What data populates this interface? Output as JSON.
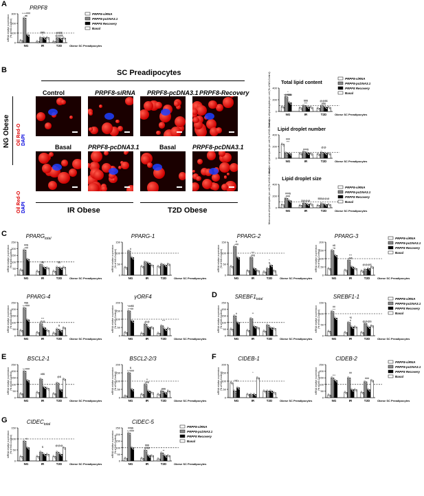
{
  "panel_letters": [
    "A",
    "B",
    "C",
    "D",
    "E",
    "F",
    "G"
  ],
  "legend_items": [
    "PRPF8-siRNA",
    "PRPF8-pcDNA3.1",
    "PRPF8 Recovery",
    "Basal"
  ],
  "ylabel_prefix": "mRNA relative expression",
  "ylabel_unit": "(% of NG-Control)",
  "obese_label": "Obese SC Preadipocytes",
  "groups": [
    "NG",
    "IR",
    "T2D"
  ],
  "micrograph": {
    "header": "SC Preadipocytes",
    "side_ng": "NG Obese",
    "stain1": "Oil Red-O",
    "stain2": "DAPI",
    "row1": [
      "Control",
      "PRPF8-siRNA",
      "PRPF8-pcDNA3.1",
      "PRPF8-Recovery"
    ],
    "row2": [
      "Basal",
      "PRPF8-pcDNA3.1",
      "Basal",
      "PRPF8-pcDNA3.1"
    ],
    "ir_label": "IR Obese",
    "t2d_label": "T2D Obese"
  },
  "lipid_titles": [
    "Total lipid content",
    "Lipid droplet number",
    "Lipid droplet size"
  ],
  "lipid_ylabels": [
    "Total area of lipid droplets per cell (% of NG-Control)",
    "Number of lipid droplets per cell (% of NG-Control)",
    "Mean area of lipid droplets per cell (% of NG-Control)"
  ],
  "chart_data": [
    {
      "id": "A",
      "type": "bar",
      "title": "PRPF8",
      "ylim": [
        0,
        300
      ],
      "yticks": [
        0,
        100,
        200,
        300
      ],
      "categories": [
        "NG",
        "IR",
        "T2D"
      ],
      "series": [
        {
          "name": "PRPF8-siRNA",
          "values": [
            22,
            12,
            11
          ]
        },
        {
          "name": "PRPF8-pcDNA3.1",
          "values": [
            255,
            52,
            50
          ]
        },
        {
          "name": "PRPF8 Recovery",
          "values": [
            80,
            50,
            45
          ]
        },
        {
          "name": "Basal",
          "values": [
            null,
            52,
            48
          ]
        }
      ],
      "annotations": [
        "*",
        "+++###",
        "##",
        "$$$",
        "*",
        "@$$$",
        "@@$$"
      ]
    },
    {
      "id": "B1",
      "type": "bar",
      "title": "Total lipid content",
      "ylim": [
        0,
        400
      ],
      "yticks": [
        0,
        200,
        400
      ],
      "categories": [
        "NG",
        "IR",
        "T2D"
      ],
      "series": [
        {
          "name": "PRPF8-siRNA",
          "values": [
            80,
            60,
            55
          ]
        },
        {
          "name": "PRPF8-pcDNA3.1",
          "values": [
            250,
            100,
            95
          ]
        },
        {
          "name": "PRPF8 Recovery",
          "values": [
            150,
            80,
            75
          ]
        },
        {
          "name": "Basal",
          "values": [
            null,
            70,
            70
          ]
        }
      ],
      "annotations": [
        "+++###",
        "*",
        "@$$$",
        "$$$",
        "***",
        "@@$$",
        "$$$"
      ]
    },
    {
      "id": "B2",
      "type": "bar",
      "title": "Lipid droplet number",
      "ylim": [
        0,
        400
      ],
      "yticks": [
        0,
        200,
        400
      ],
      "categories": [
        "NG",
        "IR",
        "T2D"
      ],
      "series": [
        {
          "name": "PRPF8-siRNA",
          "values": [
            240,
            80,
            70
          ]
        },
        {
          "name": "PRPF8-pcDNA3.1",
          "values": [
            90,
            110,
            100
          ]
        },
        {
          "name": "PRPF8 Recovery",
          "values": [
            80,
            90,
            85
          ]
        },
        {
          "name": "Basal",
          "values": [
            null,
            75,
            80
          ]
        }
      ],
      "annotations": [
        "***",
        "###",
        "###$",
        "@@"
      ]
    },
    {
      "id": "B3",
      "type": "bar",
      "title": "Lipid droplet size",
      "ylim": [
        0,
        400
      ],
      "yticks": [
        0,
        200,
        400
      ],
      "categories": [
        "NG",
        "IR",
        "T2D"
      ],
      "series": [
        {
          "name": "PRPF8-siRNA",
          "values": [
            50,
            40,
            40
          ]
        },
        {
          "name": "PRPF8-pcDNA3.1",
          "values": [
            160,
            80,
            70
          ]
        },
        {
          "name": "PRPF8 Recovery",
          "values": [
            120,
            60,
            55
          ]
        },
        {
          "name": "Basal",
          "values": [
            null,
            60,
            55
          ]
        }
      ],
      "annotations": [
        "###",
        "###$",
        "$@@@",
        "$$$@@@"
      ]
    },
    {
      "id": "C1",
      "type": "bar",
      "title": "PPARG",
      "subscript": "total",
      "ylim": [
        0,
        250
      ],
      "yticks": [
        0,
        50,
        100,
        150,
        200,
        250
      ],
      "categories": [
        "NG",
        "IR",
        "T2D"
      ],
      "series": [
        {
          "name": "PRPF8-siRNA",
          "values": [
            40,
            30,
            30
          ]
        },
        {
          "name": "PRPF8-pcDNA3.1",
          "values": [
            190,
            80,
            60
          ]
        },
        {
          "name": "PRPF8 Recovery",
          "values": [
            120,
            60,
            55
          ]
        },
        {
          "name": "Basal",
          "values": [
            null,
            55,
            60
          ]
        }
      ],
      "annotations": [
        "+##",
        "##$",
        "$$",
        "$$"
      ]
    },
    {
      "id": "C2",
      "type": "bar",
      "title": "PPARG-1",
      "ylim": [
        0,
        150
      ],
      "yticks": [
        0,
        50,
        100,
        150
      ],
      "categories": [
        "NG",
        "IR",
        "T2D"
      ],
      "series": [
        {
          "name": "PRPF8-siRNA",
          "values": [
            35,
            40,
            40
          ]
        },
        {
          "name": "PRPF8-pcDNA3.1",
          "values": [
            110,
            60,
            50
          ]
        },
        {
          "name": "PRPF8 Recovery",
          "values": [
            80,
            55,
            45
          ]
        },
        {
          "name": "Basal",
          "values": [
            null,
            45,
            50
          ]
        }
      ],
      "annotations": [
        "#"
      ]
    },
    {
      "id": "C3",
      "type": "bar",
      "title": "PPARG-2",
      "ylim": [
        0,
        150
      ],
      "yticks": [
        0,
        50,
        100,
        150
      ],
      "categories": [
        "NG",
        "IR",
        "T2D"
      ],
      "series": [
        {
          "name": "PRPF8-siRNA",
          "values": [
            40,
            20,
            15
          ]
        },
        {
          "name": "PRPF8-pcDNA3.1",
          "values": [
            130,
            80,
            30
          ]
        },
        {
          "name": "PRPF8 Recovery",
          "values": [
            80,
            30,
            45
          ]
        },
        {
          "name": "Basal",
          "values": [
            null,
            20,
            20
          ]
        }
      ],
      "annotations": [
        "+##",
        "#",
        "@$",
        "***",
        "$",
        "*"
      ]
    },
    {
      "id": "C4",
      "type": "bar",
      "title": "PPARG-3",
      "ylim": [
        0,
        200
      ],
      "yticks": [
        0,
        50,
        100,
        150,
        200
      ],
      "categories": [
        "NG",
        "IR",
        "T2D"
      ],
      "series": [
        {
          "name": "PRPF8-siRNA",
          "values": [
            40,
            30,
            25
          ]
        },
        {
          "name": "PRPF8-pcDNA3.1",
          "values": [
            150,
            90,
            35
          ]
        },
        {
          "name": "PRPF8 Recovery",
          "values": [
            120,
            50,
            40
          ]
        },
        {
          "name": "Basal",
          "values": [
            null,
            40,
            50
          ]
        }
      ],
      "annotations": [
        "+#",
        "#$",
        "@$",
        "***",
        "@@@$"
      ]
    },
    {
      "id": "C5",
      "type": "bar",
      "title": "PPARG-4",
      "ylim": [
        0,
        250
      ],
      "yticks": [
        0,
        50,
        100,
        150,
        200,
        250
      ],
      "categories": [
        "NG",
        "IR",
        "T2D"
      ],
      "series": [
        {
          "name": "PRPF8-siRNA",
          "values": [
            40,
            25,
            20
          ]
        },
        {
          "name": "PRPF8-pcDNA3.1",
          "values": [
            210,
            90,
            50
          ]
        },
        {
          "name": "PRPF8 Recovery",
          "values": [
            120,
            60,
            40
          ]
        },
        {
          "name": "Basal",
          "values": [
            null,
            40,
            60
          ]
        }
      ],
      "annotations": [
        "++###",
        "#$$",
        "@@",
        "***",
        "$"
      ]
    },
    {
      "id": "C6",
      "type": "bar",
      "title": "γORF4",
      "ylim": [
        0,
        200
      ],
      "yticks": [
        0,
        50,
        100,
        150,
        200
      ],
      "categories": [
        "NG",
        "IR",
        "T2D"
      ],
      "series": [
        {
          "name": "PRPF8-siRNA",
          "values": [
            20,
            15,
            15
          ]
        },
        {
          "name": "PRPF8-pcDNA3.1",
          "values": [
            150,
            70,
            60
          ]
        },
        {
          "name": "PRPF8 Recovery",
          "values": [
            90,
            50,
            40
          ]
        },
        {
          "name": "Basal",
          "values": [
            null,
            50,
            45
          ]
        }
      ],
      "annotations": [
        "++##",
        "*##$$",
        "@@",
        "***"
      ]
    },
    {
      "id": "D1",
      "type": "bar",
      "title": "SREBF1",
      "subscript": "total",
      "ylim": [
        0,
        250
      ],
      "yticks": [
        0,
        50,
        100,
        150,
        200,
        250
      ],
      "categories": [
        "NG",
        "IR",
        "T2D"
      ],
      "series": [
        {
          "name": "PRPF8-siRNA",
          "values": [
            50,
            40,
            35
          ]
        },
        {
          "name": "PRPF8-pcDNA3.1",
          "values": [
            150,
            130,
            80
          ]
        },
        {
          "name": "PRPF8 Recovery",
          "values": [
            100,
            70,
            60
          ]
        },
        {
          "name": "Basal",
          "values": [
            null,
            60,
            55
          ]
        }
      ],
      "annotations": [
        "#",
        "**"
      ]
    },
    {
      "id": "D2",
      "type": "bar",
      "title": "SREBF1-1",
      "ylim": [
        0,
        150
      ],
      "yticks": [
        0,
        50,
        100,
        150
      ],
      "categories": [
        "NG",
        "IR",
        "T2D"
      ],
      "series": [
        {
          "name": "PRPF8-siRNA",
          "values": [
            20,
            15,
            15
          ]
        },
        {
          "name": "PRPF8-pcDNA3.1",
          "values": [
            110,
            60,
            55
          ]
        },
        {
          "name": "PRPF8 Recovery",
          "values": [
            80,
            40,
            40
          ]
        },
        {
          "name": "Basal",
          "values": [
            null,
            40,
            45
          ]
        }
      ],
      "annotations": [
        "++",
        "##",
        "#",
        "*$",
        "@@@$"
      ]
    },
    {
      "id": "E1",
      "type": "bar",
      "title": "BSCL2-1",
      "ylim": [
        0,
        250
      ],
      "yticks": [
        0,
        50,
        100,
        150,
        200,
        250
      ],
      "categories": [
        "NG",
        "IR",
        "T2D"
      ],
      "series": [
        {
          "name": "PRPF8-siRNA",
          "values": [
            30,
            40,
            30
          ]
        },
        {
          "name": "PRPF8-pcDNA3.1",
          "values": [
            200,
            140,
            110
          ]
        },
        {
          "name": "PRPF8 Recovery",
          "values": [
            130,
            80,
            60
          ]
        },
        {
          "name": "Basal",
          "values": [
            null,
            70,
            140
          ]
        }
      ],
      "annotations": [
        "++###",
        "#$$",
        "@$"
      ]
    },
    {
      "id": "E2",
      "type": "bar",
      "title": "BSCL2-2/3",
      "ylim": [
        0,
        200
      ],
      "yticks": [
        0,
        50,
        100,
        150,
        200
      ],
      "categories": [
        "NG",
        "IR",
        "T2D"
      ],
      "series": [
        {
          "name": "PRPF8-siRNA",
          "values": [
            10,
            20,
            20
          ]
        },
        {
          "name": "PRPF8-pcDNA3.1",
          "values": [
            150,
            80,
            40
          ]
        },
        {
          "name": "PRPF8 Recovery",
          "values": [
            50,
            40,
            30
          ]
        },
        {
          "name": "Basal",
          "values": [
            null,
            30,
            40
          ]
        }
      ],
      "annotations": [
        "++###",
        "$",
        "@$",
        "**",
        "$$$"
      ]
    },
    {
      "id": "F1",
      "type": "bar",
      "title": "CIDEB-1",
      "ylim": [
        0,
        200
      ],
      "yticks": [
        0,
        50,
        100,
        150,
        200
      ],
      "categories": [
        "NG",
        "IR",
        "T2D"
      ],
      "series": [
        {
          "name": "PRPF8-siRNA",
          "values": [
            90,
            20,
            40
          ]
        },
        {
          "name": "PRPF8-pcDNA3.1",
          "values": [
            40,
            20,
            40
          ]
        },
        {
          "name": "PRPF8 Recovery",
          "values": [
            60,
            20,
            40
          ]
        },
        {
          "name": "Basal",
          "values": [
            null,
            120,
            30
          ]
        }
      ],
      "annotations": [
        "ND",
        "*"
      ]
    },
    {
      "id": "F2",
      "type": "bar",
      "title": "CIDEB-2",
      "ylim": [
        0,
        250
      ],
      "yticks": [
        0,
        50,
        100,
        150,
        200,
        250
      ],
      "categories": [
        "NG",
        "IR",
        "T2D"
      ],
      "series": [
        {
          "name": "PRPF8-siRNA",
          "values": [
            20,
            40,
            40
          ]
        },
        {
          "name": "PRPF8-pcDNA3.1",
          "values": [
            150,
            150,
            120
          ]
        },
        {
          "name": "PRPF8 Recovery",
          "values": [
            130,
            60,
            60
          ]
        },
        {
          "name": "Basal",
          "values": [
            null,
            60,
            130
          ]
        }
      ],
      "annotations": [
        "***",
        "##",
        "###"
      ]
    },
    {
      "id": "G1",
      "type": "bar",
      "title": "CIDEC",
      "subscript": "total",
      "ylim": [
        0,
        150
      ],
      "yticks": [
        0,
        50,
        100,
        150
      ],
      "categories": [
        "NG",
        "IR",
        "T2D"
      ],
      "series": [
        {
          "name": "PRPF8-siRNA",
          "values": [
            20,
            20,
            20
          ]
        },
        {
          "name": "PRPF8-pcDNA3.1",
          "values": [
            90,
            40,
            40
          ]
        },
        {
          "name": "PRPF8 Recovery",
          "values": [
            60,
            30,
            30
          ]
        },
        {
          "name": "Basal",
          "values": [
            null,
            30,
            60
          ]
        }
      ],
      "annotations": [
        "+#",
        "$",
        "@@@"
      ]
    },
    {
      "id": "G2",
      "type": "bar",
      "title": "CIDEC-5",
      "ylim": [
        0,
        250
      ],
      "yticks": [
        0,
        50,
        100,
        150,
        200,
        250
      ],
      "categories": [
        "NG",
        "IR",
        "T2D"
      ],
      "series": [
        {
          "name": "PRPF8-siRNA",
          "values": [
            20,
            20,
            15
          ]
        },
        {
          "name": "PRPF8-pcDNA3.1",
          "values": [
            210,
            80,
            60
          ]
        },
        {
          "name": "PRPF8 Recovery",
          "values": [
            100,
            40,
            40
          ]
        },
        {
          "name": "Basal",
          "values": [
            null,
            40,
            40
          ]
        }
      ],
      "annotations": [
        "++###",
        "##$$",
        "@$$",
        "$$$",
        "**"
      ]
    }
  ],
  "colors": {
    "siRNA": "#ffffff",
    "pcDNA": "#808080",
    "recovery": "#000000",
    "basal": "#ffffff"
  }
}
